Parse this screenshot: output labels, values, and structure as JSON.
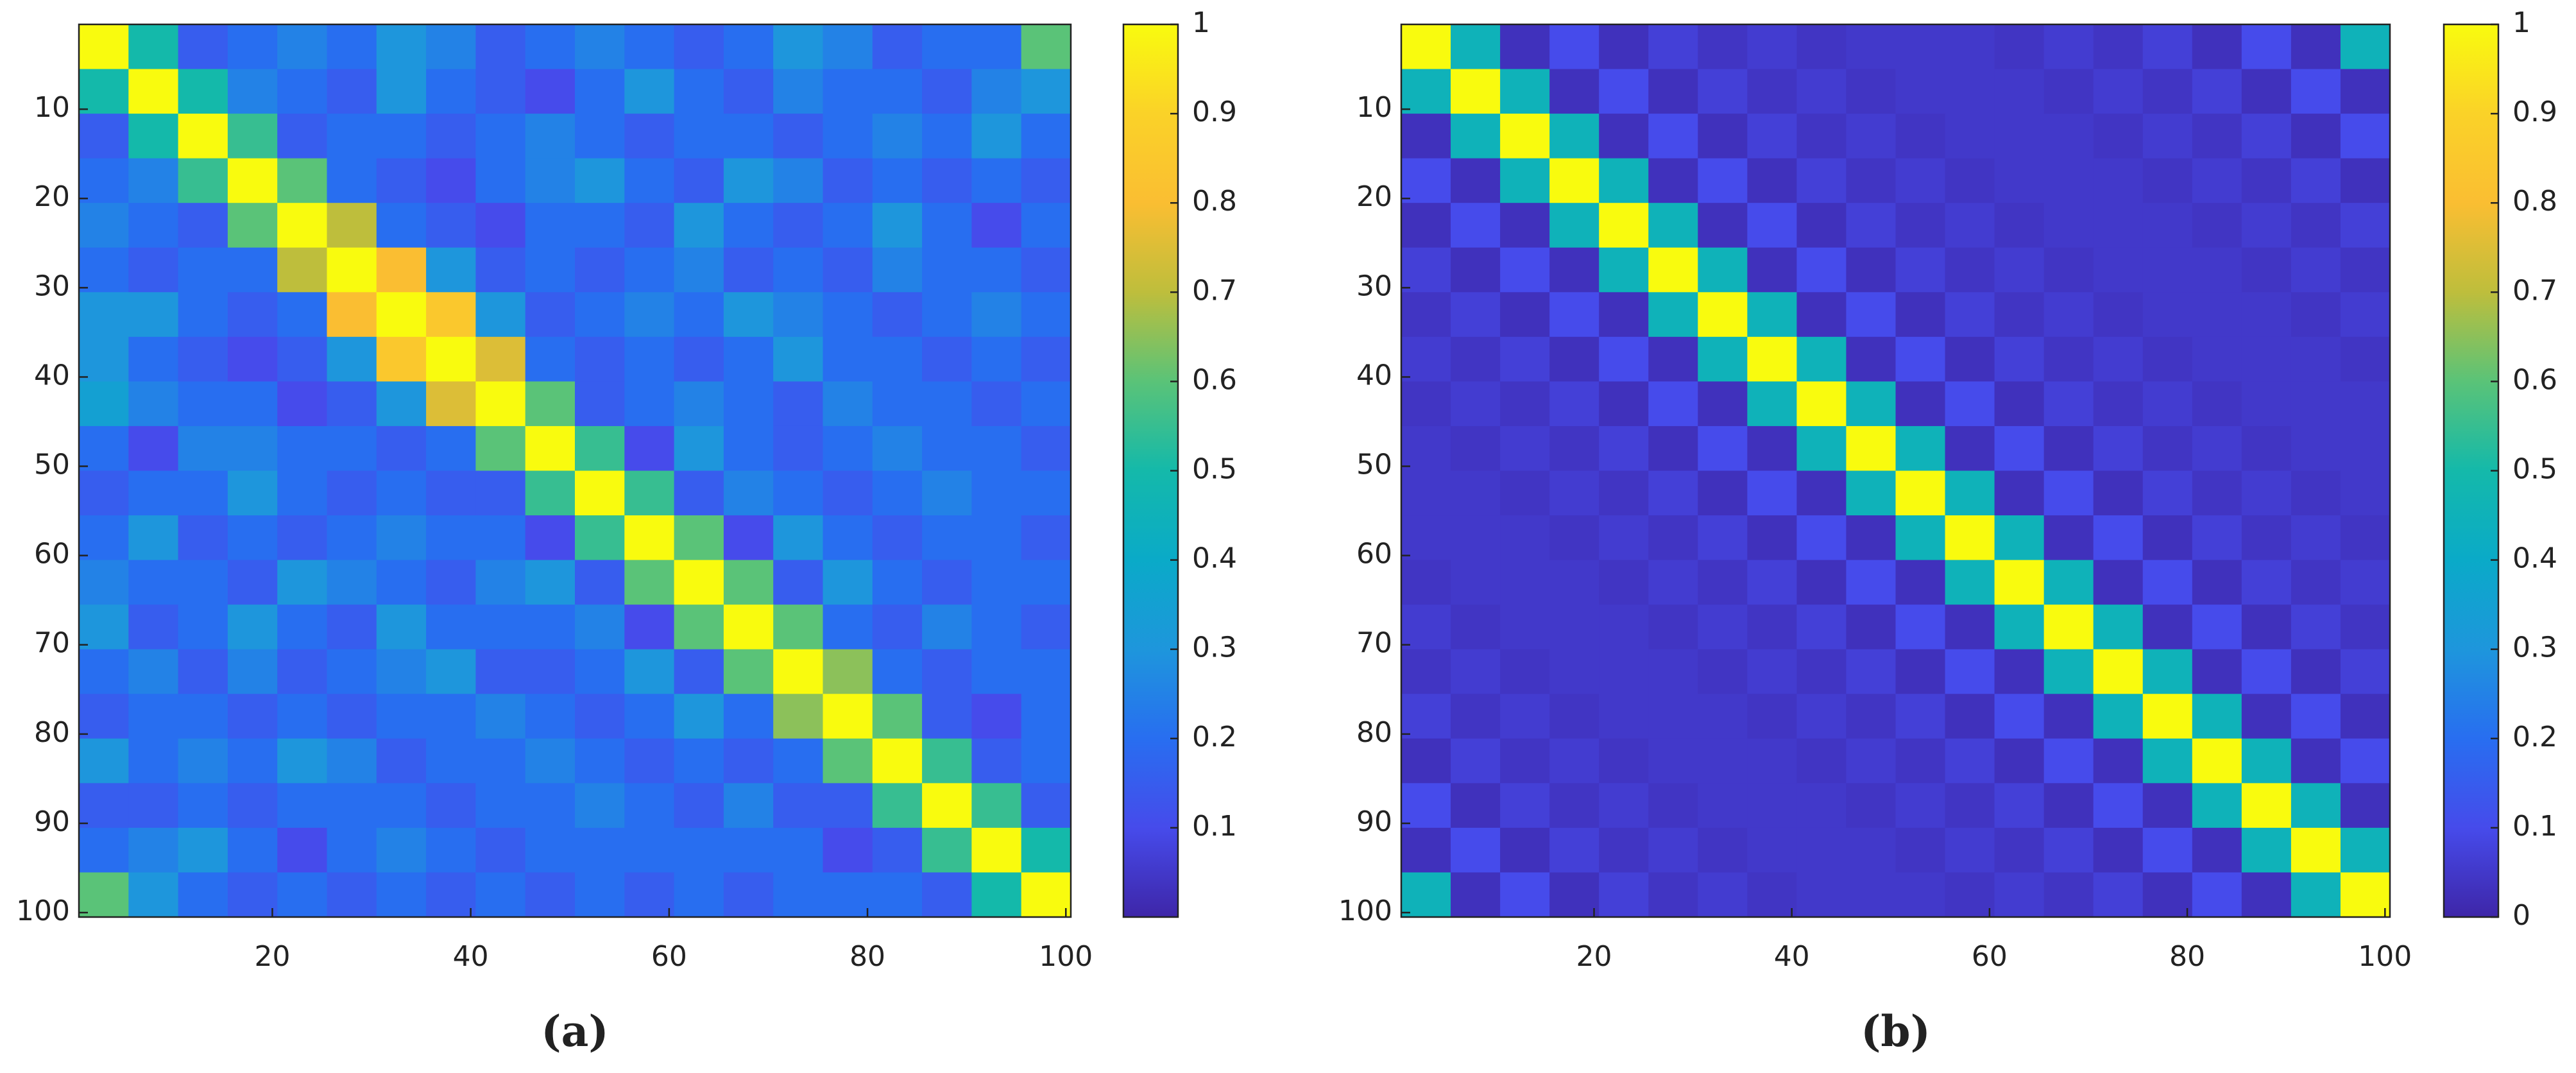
{
  "chart_data": [
    {
      "type": "heatmap",
      "caption": "(a)",
      "colormap": "parula",
      "x": [
        3,
        8,
        13,
        18,
        23,
        28,
        33,
        38,
        43,
        48,
        53,
        58,
        63,
        68,
        73,
        78,
        83,
        88,
        93,
        98
      ],
      "y": [
        3,
        8,
        13,
        18,
        23,
        28,
        33,
        38,
        43,
        48,
        53,
        58,
        63,
        68,
        73,
        78,
        83,
        88,
        93,
        98
      ],
      "xlim": [
        0.5,
        100.5
      ],
      "ylim": [
        100.5,
        0.5
      ],
      "xticks": [
        20,
        40,
        60,
        80,
        100
      ],
      "yticks": [
        10,
        20,
        30,
        40,
        50,
        60,
        70,
        80,
        90,
        100
      ],
      "clim": [
        0,
        1
      ],
      "cticks": [
        0.1,
        0.2,
        0.3,
        0.4,
        0.5,
        0.6,
        0.7,
        0.8,
        0.9,
        1
      ],
      "values": [
        [
          1,
          0.5,
          0.15,
          0.2,
          0.25,
          0.2,
          0.3,
          0.25,
          0.15,
          0.2,
          0.25,
          0.2,
          0.15,
          0.2,
          0.3,
          0.25,
          0.15,
          0.2,
          0.2,
          0.6
        ],
        [
          0.5,
          1,
          0.5,
          0.25,
          0.2,
          0.15,
          0.3,
          0.2,
          0.15,
          0.1,
          0.2,
          0.3,
          0.2,
          0.15,
          0.25,
          0.2,
          0.2,
          0.15,
          0.25,
          0.3
        ],
        [
          0.15,
          0.5,
          1,
          0.55,
          0.15,
          0.2,
          0.2,
          0.15,
          0.2,
          0.25,
          0.2,
          0.15,
          0.2,
          0.2,
          0.15,
          0.2,
          0.25,
          0.2,
          0.3,
          0.2
        ],
        [
          0.2,
          0.25,
          0.55,
          1,
          0.6,
          0.2,
          0.15,
          0.1,
          0.2,
          0.25,
          0.3,
          0.2,
          0.15,
          0.3,
          0.25,
          0.15,
          0.2,
          0.15,
          0.2,
          0.15
        ],
        [
          0.25,
          0.2,
          0.15,
          0.6,
          1,
          0.7,
          0.2,
          0.15,
          0.1,
          0.2,
          0.2,
          0.15,
          0.3,
          0.2,
          0.15,
          0.2,
          0.3,
          0.2,
          0.1,
          0.2
        ],
        [
          0.2,
          0.15,
          0.2,
          0.2,
          0.7,
          1,
          0.8,
          0.3,
          0.15,
          0.2,
          0.15,
          0.2,
          0.25,
          0.15,
          0.2,
          0.15,
          0.25,
          0.2,
          0.2,
          0.15
        ],
        [
          0.3,
          0.3,
          0.2,
          0.15,
          0.2,
          0.8,
          1,
          0.85,
          0.3,
          0.15,
          0.2,
          0.25,
          0.2,
          0.3,
          0.25,
          0.2,
          0.15,
          0.2,
          0.25,
          0.2
        ],
        [
          0.3,
          0.2,
          0.15,
          0.1,
          0.15,
          0.3,
          0.85,
          1,
          0.75,
          0.2,
          0.15,
          0.2,
          0.15,
          0.2,
          0.3,
          0.2,
          0.2,
          0.15,
          0.2,
          0.15
        ],
        [
          0.35,
          0.25,
          0.2,
          0.2,
          0.1,
          0.15,
          0.3,
          0.75,
          1,
          0.6,
          0.15,
          0.2,
          0.25,
          0.2,
          0.15,
          0.25,
          0.2,
          0.2,
          0.15,
          0.2
        ],
        [
          0.2,
          0.1,
          0.25,
          0.25,
          0.2,
          0.2,
          0.15,
          0.2,
          0.6,
          1,
          0.55,
          0.1,
          0.3,
          0.2,
          0.15,
          0.2,
          0.25,
          0.2,
          0.2,
          0.15
        ],
        [
          0.15,
          0.2,
          0.2,
          0.3,
          0.2,
          0.15,
          0.2,
          0.15,
          0.15,
          0.55,
          1,
          0.55,
          0.15,
          0.25,
          0.2,
          0.15,
          0.2,
          0.25,
          0.2,
          0.2
        ],
        [
          0.2,
          0.3,
          0.15,
          0.2,
          0.15,
          0.2,
          0.25,
          0.2,
          0.2,
          0.1,
          0.55,
          1,
          0.6,
          0.1,
          0.3,
          0.2,
          0.15,
          0.2,
          0.2,
          0.15
        ],
        [
          0.25,
          0.2,
          0.2,
          0.15,
          0.3,
          0.25,
          0.2,
          0.15,
          0.25,
          0.3,
          0.15,
          0.6,
          1,
          0.6,
          0.15,
          0.3,
          0.2,
          0.15,
          0.2,
          0.2
        ],
        [
          0.3,
          0.15,
          0.2,
          0.3,
          0.2,
          0.15,
          0.3,
          0.2,
          0.2,
          0.2,
          0.25,
          0.1,
          0.6,
          1,
          0.6,
          0.2,
          0.15,
          0.25,
          0.2,
          0.15
        ],
        [
          0.2,
          0.25,
          0.15,
          0.25,
          0.15,
          0.2,
          0.25,
          0.3,
          0.15,
          0.15,
          0.2,
          0.3,
          0.15,
          0.6,
          1,
          0.65,
          0.2,
          0.15,
          0.2,
          0.2
        ],
        [
          0.15,
          0.2,
          0.2,
          0.15,
          0.2,
          0.15,
          0.2,
          0.2,
          0.25,
          0.2,
          0.15,
          0.2,
          0.3,
          0.2,
          0.65,
          1,
          0.6,
          0.15,
          0.1,
          0.2
        ],
        [
          0.3,
          0.2,
          0.25,
          0.2,
          0.3,
          0.25,
          0.15,
          0.2,
          0.2,
          0.25,
          0.2,
          0.15,
          0.2,
          0.15,
          0.2,
          0.6,
          1,
          0.55,
          0.15,
          0.2
        ],
        [
          0.15,
          0.15,
          0.2,
          0.15,
          0.2,
          0.2,
          0.2,
          0.15,
          0.2,
          0.2,
          0.25,
          0.2,
          0.15,
          0.25,
          0.15,
          0.15,
          0.55,
          1,
          0.55,
          0.15
        ],
        [
          0.2,
          0.25,
          0.3,
          0.2,
          0.1,
          0.2,
          0.25,
          0.2,
          0.15,
          0.2,
          0.2,
          0.2,
          0.2,
          0.2,
          0.2,
          0.1,
          0.15,
          0.55,
          1,
          0.5
        ],
        [
          0.6,
          0.3,
          0.2,
          0.15,
          0.2,
          0.15,
          0.2,
          0.15,
          0.2,
          0.15,
          0.2,
          0.15,
          0.2,
          0.15,
          0.2,
          0.2,
          0.2,
          0.15,
          0.5,
          1
        ]
      ]
    },
    {
      "type": "heatmap",
      "caption": "(b)",
      "colormap": "parula",
      "x": [
        3,
        8,
        13,
        18,
        23,
        28,
        33,
        38,
        43,
        48,
        53,
        58,
        63,
        68,
        73,
        78,
        83,
        88,
        93,
        98
      ],
      "y": [
        3,
        8,
        13,
        18,
        23,
        28,
        33,
        38,
        43,
        48,
        53,
        58,
        63,
        68,
        73,
        78,
        83,
        88,
        93,
        98
      ],
      "xlim": [
        0.5,
        100.5
      ],
      "ylim": [
        100.5,
        0.5
      ],
      "xticks": [
        20,
        40,
        60,
        80,
        100
      ],
      "yticks": [
        10,
        20,
        30,
        40,
        50,
        60,
        70,
        80,
        90,
        100
      ],
      "clim": [
        0,
        1
      ],
      "cticks": [
        0,
        0.1,
        0.2,
        0.3,
        0.4,
        0.5,
        0.6,
        0.7,
        0.8,
        0.9,
        1
      ],
      "values": [
        [
          1,
          0.45,
          0.03,
          0.1,
          0.03,
          0.07,
          0.04,
          0.06,
          0.04,
          0.05,
          0.05,
          0.05,
          0.04,
          0.06,
          0.04,
          0.07,
          0.03,
          0.1,
          0.03,
          0.45
        ],
        [
          0.45,
          1,
          0.45,
          0.03,
          0.1,
          0.03,
          0.07,
          0.04,
          0.06,
          0.04,
          0.05,
          0.05,
          0.05,
          0.04,
          0.06,
          0.04,
          0.07,
          0.03,
          0.1,
          0.03
        ],
        [
          0.03,
          0.45,
          1,
          0.45,
          0.03,
          0.1,
          0.03,
          0.07,
          0.04,
          0.06,
          0.04,
          0.05,
          0.05,
          0.05,
          0.04,
          0.06,
          0.04,
          0.07,
          0.03,
          0.1
        ],
        [
          0.1,
          0.03,
          0.45,
          1,
          0.45,
          0.03,
          0.1,
          0.03,
          0.07,
          0.04,
          0.06,
          0.04,
          0.05,
          0.05,
          0.05,
          0.04,
          0.06,
          0.04,
          0.07,
          0.03
        ],
        [
          0.03,
          0.1,
          0.03,
          0.45,
          1,
          0.45,
          0.03,
          0.1,
          0.03,
          0.07,
          0.04,
          0.06,
          0.04,
          0.05,
          0.05,
          0.05,
          0.04,
          0.06,
          0.04,
          0.07
        ],
        [
          0.07,
          0.03,
          0.1,
          0.03,
          0.45,
          1,
          0.45,
          0.03,
          0.1,
          0.03,
          0.07,
          0.04,
          0.06,
          0.04,
          0.05,
          0.05,
          0.05,
          0.04,
          0.06,
          0.04
        ],
        [
          0.04,
          0.07,
          0.03,
          0.1,
          0.03,
          0.45,
          1,
          0.45,
          0.03,
          0.1,
          0.03,
          0.07,
          0.04,
          0.06,
          0.04,
          0.05,
          0.05,
          0.05,
          0.04,
          0.06
        ],
        [
          0.06,
          0.04,
          0.07,
          0.03,
          0.1,
          0.03,
          0.45,
          1,
          0.45,
          0.03,
          0.1,
          0.03,
          0.07,
          0.04,
          0.06,
          0.04,
          0.05,
          0.05,
          0.05,
          0.04
        ],
        [
          0.04,
          0.06,
          0.04,
          0.07,
          0.03,
          0.1,
          0.03,
          0.45,
          1,
          0.45,
          0.03,
          0.1,
          0.03,
          0.07,
          0.04,
          0.06,
          0.04,
          0.05,
          0.05,
          0.05
        ],
        [
          0.05,
          0.04,
          0.06,
          0.04,
          0.07,
          0.03,
          0.1,
          0.03,
          0.45,
          1,
          0.45,
          0.03,
          0.1,
          0.03,
          0.07,
          0.04,
          0.06,
          0.04,
          0.05,
          0.05
        ],
        [
          0.05,
          0.05,
          0.04,
          0.06,
          0.04,
          0.07,
          0.03,
          0.1,
          0.03,
          0.45,
          1,
          0.45,
          0.03,
          0.1,
          0.03,
          0.07,
          0.04,
          0.06,
          0.04,
          0.05
        ],
        [
          0.05,
          0.05,
          0.05,
          0.04,
          0.06,
          0.04,
          0.07,
          0.03,
          0.1,
          0.03,
          0.45,
          1,
          0.45,
          0.03,
          0.1,
          0.03,
          0.07,
          0.04,
          0.06,
          0.04
        ],
        [
          0.04,
          0.05,
          0.05,
          0.05,
          0.04,
          0.06,
          0.04,
          0.07,
          0.03,
          0.1,
          0.03,
          0.45,
          1,
          0.45,
          0.03,
          0.1,
          0.03,
          0.07,
          0.04,
          0.06
        ],
        [
          0.06,
          0.04,
          0.05,
          0.05,
          0.05,
          0.04,
          0.06,
          0.04,
          0.07,
          0.03,
          0.1,
          0.03,
          0.45,
          1,
          0.45,
          0.03,
          0.1,
          0.03,
          0.07,
          0.04
        ],
        [
          0.04,
          0.06,
          0.04,
          0.05,
          0.05,
          0.05,
          0.04,
          0.06,
          0.04,
          0.07,
          0.03,
          0.1,
          0.03,
          0.45,
          1,
          0.45,
          0.03,
          0.1,
          0.03,
          0.07
        ],
        [
          0.07,
          0.04,
          0.06,
          0.04,
          0.05,
          0.05,
          0.05,
          0.04,
          0.06,
          0.04,
          0.07,
          0.03,
          0.1,
          0.03,
          0.45,
          1,
          0.45,
          0.03,
          0.1,
          0.03
        ],
        [
          0.03,
          0.07,
          0.04,
          0.06,
          0.04,
          0.05,
          0.05,
          0.05,
          0.04,
          0.06,
          0.04,
          0.07,
          0.03,
          0.1,
          0.03,
          0.45,
          1,
          0.45,
          0.03,
          0.1
        ],
        [
          0.1,
          0.03,
          0.07,
          0.04,
          0.06,
          0.04,
          0.05,
          0.05,
          0.05,
          0.04,
          0.06,
          0.04,
          0.07,
          0.03,
          0.1,
          0.03,
          0.45,
          1,
          0.45,
          0.03
        ],
        [
          0.03,
          0.1,
          0.03,
          0.07,
          0.04,
          0.06,
          0.04,
          0.05,
          0.05,
          0.05,
          0.04,
          0.06,
          0.04,
          0.07,
          0.03,
          0.1,
          0.03,
          0.45,
          1,
          0.45
        ],
        [
          0.45,
          0.03,
          0.1,
          0.03,
          0.07,
          0.04,
          0.06,
          0.04,
          0.05,
          0.05,
          0.05,
          0.04,
          0.06,
          0.04,
          0.07,
          0.03,
          0.1,
          0.03,
          0.45,
          1
        ]
      ]
    }
  ]
}
